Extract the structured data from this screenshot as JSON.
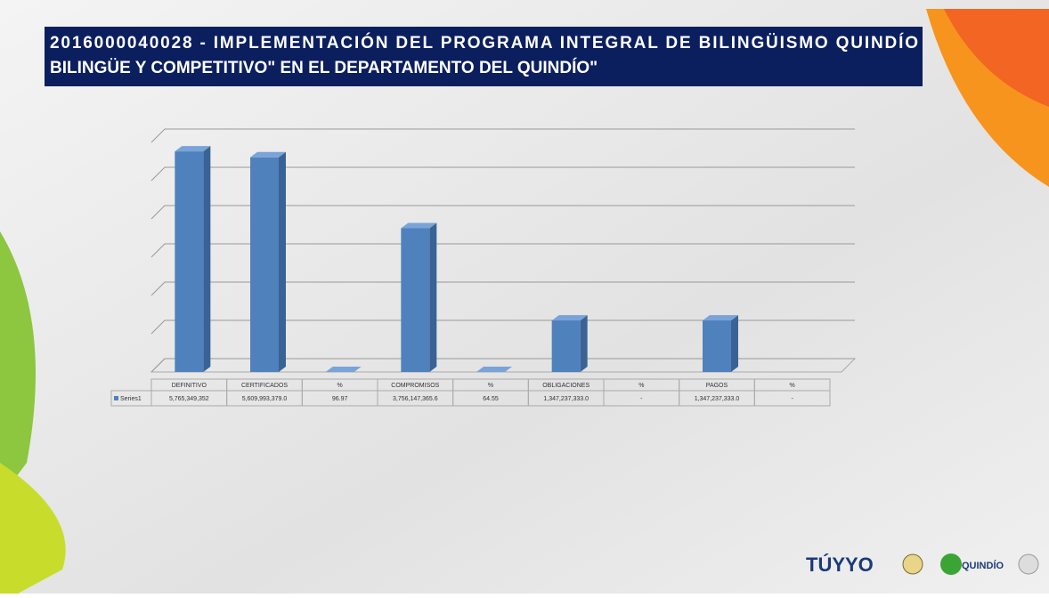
{
  "chart_data": {
    "type": "bar3d",
    "title": "2016000040028 - IMPLEMENTACIÓN DEL PROGRAMA INTEGRAL DE BILINGÜISMO QUINDÍO BILINGÜE Y COMPETITIVO\" EN EL DEPARTAMENTO DEL QUINDÍO\"",
    "title_lines": [
      "2016000040028 - IMPLEMENTACIÓN DEL PROGRAMA INTEGRAL DE BILINGÜISMO QUINDÍO",
      "BILINGÜE Y COMPETITIVO\" EN EL DEPARTAMENTO DEL QUINDÍO\""
    ],
    "categories": [
      "DEFINITIVO",
      "CERTIFICADOS",
      "%",
      "COMPROMISOS",
      "%",
      "OBLIGACIONES",
      "%",
      "PAGOS",
      "%"
    ],
    "series": [
      {
        "name": "Series1",
        "color": "#4f81bd",
        "values": [
          5765349352,
          5609993379.0,
          96.97,
          3756147365.6,
          64.55,
          1347237333.0,
          null,
          1347237333.0,
          null
        ],
        "value_labels": [
          "5,765,349,352",
          "5,609,993,379.0",
          "96.97",
          "3,756,147,365.6",
          "64.55",
          "1,347,237,333.0",
          "-",
          "1,347,237,333.0",
          "-"
        ]
      }
    ],
    "ylim": [
      0,
      6000000000
    ],
    "yticks": [
      0,
      1000000000,
      2000000000,
      3000000000,
      4000000000,
      5000000000,
      6000000000
    ],
    "grid": true
  },
  "logos": [
    "TÚYYO",
    "QUINDÍO"
  ]
}
